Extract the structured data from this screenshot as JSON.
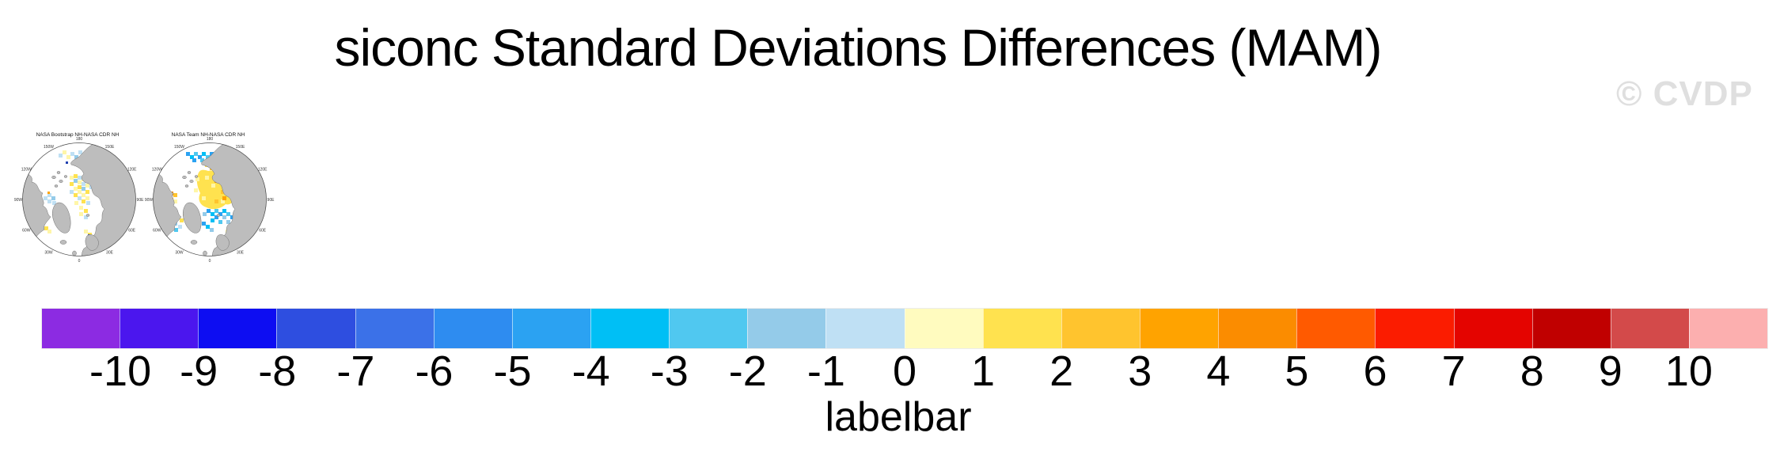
{
  "header": {
    "title": "siconc Standard Deviations Differences (MAM)",
    "watermark": "© CVDP"
  },
  "maps": {
    "panels": [
      {
        "title": "NASA Bootstrap NH-NASA CDR NH"
      },
      {
        "title": "NASA Team NH-NASA CDR NH"
      }
    ],
    "lon_labels": [
      "180",
      "150E",
      "120E",
      "90E",
      "60E",
      "30E",
      "0",
      "30W",
      "60W",
      "90W",
      "120W",
      "150W"
    ]
  },
  "labelbar": {
    "title": "labelbar",
    "ticks": [
      "-10",
      "-9",
      "-8",
      "-7",
      "-6",
      "-5",
      "-4",
      "-3",
      "-2",
      "-1",
      "0",
      "1",
      "2",
      "3",
      "4",
      "5",
      "6",
      "7",
      "8",
      "9",
      "10"
    ],
    "colors": [
      "#8C2BE2",
      "#4B16EE",
      "#0D0DF2",
      "#2E4EE0",
      "#3B71E8",
      "#2E8CF0",
      "#2BA2F2",
      "#00BFF5",
      "#50C8F0",
      "#94CBE9",
      "#BFE0F4",
      "#FFFBBF",
      "#FFE24F",
      "#FFC42E",
      "#FFA300",
      "#FB8C00",
      "#FF5A00",
      "#FB1C00",
      "#E40400",
      "#C00000",
      "#D34A4A",
      "#FCAFAF"
    ]
  },
  "chart_data": {
    "type": "heatmap",
    "title": "siconc Standard Deviations Differences (MAM)",
    "variable": "siconc",
    "season": "MAM",
    "panels": [
      "NASA Bootstrap NH-NASA CDR NH",
      "NASA Team NH-NASA CDR NH"
    ],
    "projection": "northern-hemisphere polar stereographic",
    "colorbar": {
      "label": "labelbar",
      "orientation": "horizontal",
      "tick_values": [
        -10,
        -9,
        -8,
        -7,
        -6,
        -5,
        -4,
        -3,
        -2,
        -1,
        0,
        1,
        2,
        3,
        4,
        5,
        6,
        7,
        8,
        9,
        10
      ],
      "cell_colors": [
        "#8C2BE2",
        "#4B16EE",
        "#0D0DF2",
        "#2E4EE0",
        "#3B71E8",
        "#2E8CF0",
        "#2BA2F2",
        "#00BFF5",
        "#50C8F0",
        "#94CBE9",
        "#BFE0F4",
        "#FFFBBF",
        "#FFE24F",
        "#FFC42E",
        "#FFA300",
        "#FB8C00",
        "#FF5A00",
        "#FB1C00",
        "#E40400",
        "#C00000",
        "#D34A4A",
        "#FCAFAF"
      ]
    }
  }
}
